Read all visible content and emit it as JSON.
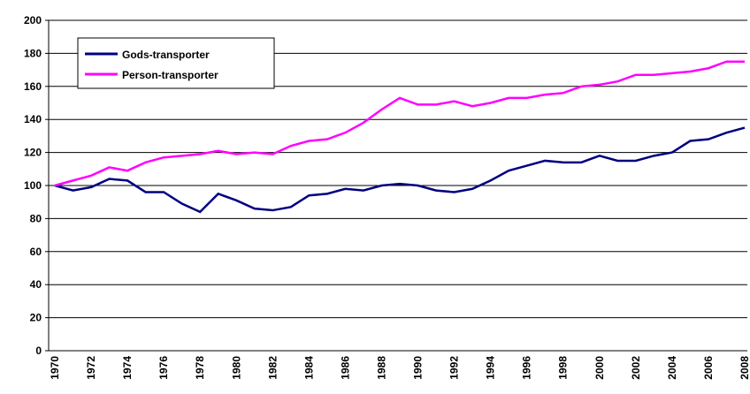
{
  "chart_data": {
    "type": "line",
    "categories": [
      "1970",
      null,
      "1972",
      null,
      "1974",
      null,
      "1976",
      null,
      "1978",
      null,
      "1980",
      null,
      "1982",
      null,
      "1984",
      null,
      "1986",
      null,
      "1988",
      null,
      "1990",
      null,
      "1992",
      null,
      "1994",
      null,
      "1996",
      null,
      "1998",
      null,
      "2000",
      null,
      "2002",
      null,
      "2004",
      null,
      "2006",
      null,
      "2008"
    ],
    "series": [
      {
        "name": "Gods-transporter",
        "color": "#000080",
        "values": [
          100,
          97,
          99,
          104,
          103,
          96,
          96,
          89,
          84,
          95,
          91,
          86,
          85,
          87,
          94,
          95,
          98,
          97,
          100,
          101,
          100,
          97,
          96,
          98,
          103,
          109,
          112,
          115,
          114,
          114,
          118,
          115,
          115,
          118,
          120,
          127,
          128,
          132,
          135
        ]
      },
      {
        "name": "Person-transporter",
        "color": "#ff00ff",
        "values": [
          100,
          103,
          106,
          111,
          109,
          114,
          117,
          118,
          119,
          121,
          119,
          120,
          119,
          124,
          127,
          128,
          132,
          138,
          146,
          153,
          149,
          149,
          151,
          148,
          150,
          153,
          153,
          155,
          156,
          160,
          161,
          163,
          167,
          167,
          168,
          169,
          171,
          175,
          175
        ]
      }
    ],
    "ylim": [
      0,
      200
    ],
    "yticks": [
      0,
      20,
      40,
      60,
      80,
      100,
      120,
      140,
      160,
      180,
      200
    ],
    "grid": true,
    "legend_position": "upper left"
  }
}
